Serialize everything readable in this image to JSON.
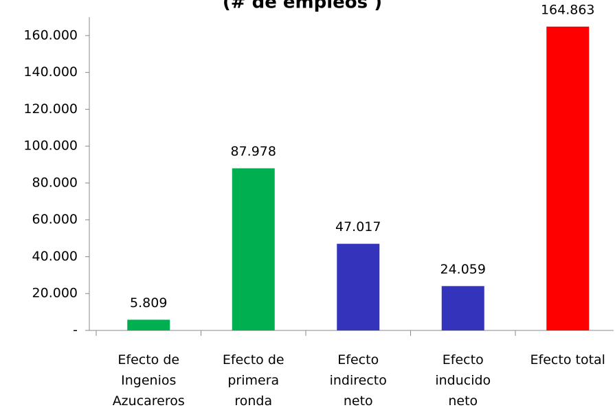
{
  "chart_data": {
    "type": "bar",
    "title": "(# de empleos )",
    "categories": [
      [
        "Efecto de",
        "Ingenios",
        "Azucareros"
      ],
      [
        "Efecto de",
        "primera",
        "ronda"
      ],
      [
        "Efecto",
        "indirecto",
        "neto"
      ],
      [
        "Efecto",
        "inducido",
        "neto"
      ],
      [
        "Efecto total"
      ]
    ],
    "values": [
      5809,
      87978,
      47017,
      24059,
      164863
    ],
    "value_labels": [
      "5.809",
      "87.978",
      "47.017",
      "24.059",
      "164.863"
    ],
    "colors": [
      "#00b050",
      "#00b050",
      "#3333bb",
      "#3333bb",
      "#ff0000"
    ],
    "ylim": [
      0,
      170000
    ],
    "yticks": [
      {
        "value": 0,
        "label": "-"
      },
      {
        "value": 20000,
        "label": "20.000"
      },
      {
        "value": 40000,
        "label": "40.000"
      },
      {
        "value": 60000,
        "label": "60.000"
      },
      {
        "value": 80000,
        "label": "80.000"
      },
      {
        "value": 100000,
        "label": "100.000"
      },
      {
        "value": 120000,
        "label": "120.000"
      },
      {
        "value": 140000,
        "label": "140.000"
      },
      {
        "value": 160000,
        "label": "160.000"
      }
    ],
    "grid": false
  }
}
